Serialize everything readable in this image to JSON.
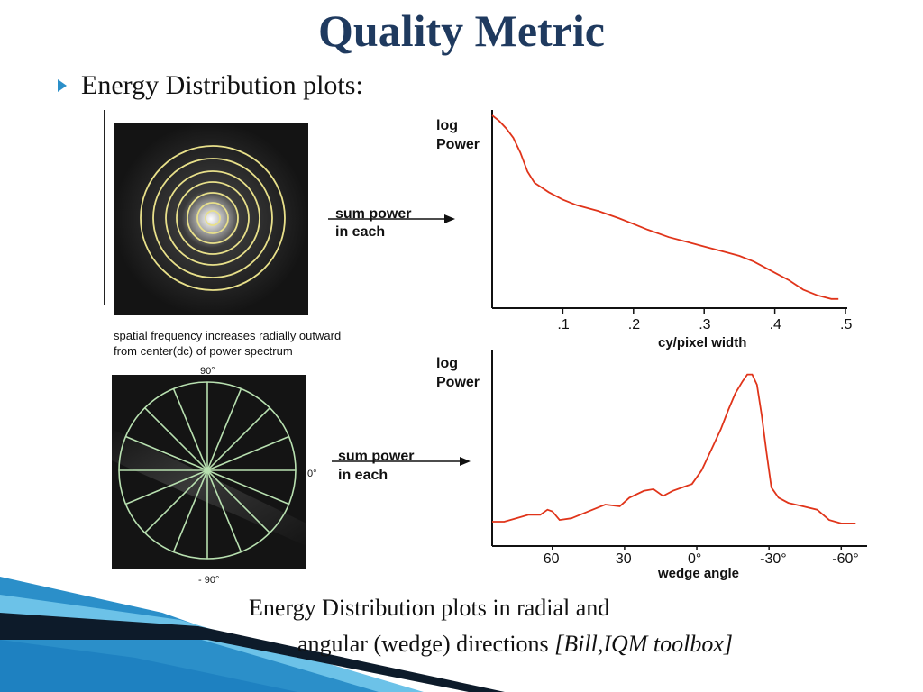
{
  "slide": {
    "title": "Quality Metric",
    "bullet": "Energy Distribution plots:",
    "caption_line1": "Energy Distribution plots in radial and",
    "caption_line2": "angular (wedge) directions",
    "caption_citation": "[Bill,IQM toolbox]"
  },
  "radial_panel": {
    "arrow_label_line1": "sum power",
    "arrow_label_line2": "in each",
    "image_caption_line1": "spatial frequency increases radially outward",
    "image_caption_line2": "from center(dc) of power spectrum"
  },
  "angular_panel": {
    "arrow_label_line1": "sum power",
    "arrow_label_line2": "in each",
    "angle_top": "90°",
    "angle_right": "0°",
    "angle_bottom": "- 90°"
  },
  "colors": {
    "title": "#1f3a5f",
    "bullet_marker": "#2b8fc9",
    "curve": "#e0341a",
    "rings": "#e8e08a",
    "spokes": "#b8e0b0"
  },
  "chart_data": [
    {
      "type": "line",
      "title": "",
      "ylabel_line1": "log",
      "ylabel_line2": "Power",
      "xlabel": "cy/pixel width",
      "xlim": [
        0,
        0.5
      ],
      "xticks": [
        ".1",
        ".2",
        ".3",
        ".4",
        ".5"
      ],
      "x": [
        0.0,
        0.01,
        0.02,
        0.03,
        0.04,
        0.05,
        0.06,
        0.08,
        0.1,
        0.12,
        0.15,
        0.18,
        0.2,
        0.22,
        0.25,
        0.28,
        0.3,
        0.33,
        0.35,
        0.37,
        0.4,
        0.42,
        0.44,
        0.46,
        0.48,
        0.49
      ],
      "y": [
        1.0,
        0.97,
        0.93,
        0.88,
        0.8,
        0.7,
        0.64,
        0.59,
        0.55,
        0.52,
        0.49,
        0.45,
        0.42,
        0.39,
        0.35,
        0.32,
        0.3,
        0.27,
        0.25,
        0.22,
        0.16,
        0.12,
        0.07,
        0.04,
        0.02,
        0.02
      ]
    },
    {
      "type": "line",
      "title": "",
      "ylabel_line1": "log",
      "ylabel_line2": "Power",
      "xlabel": "wedge angle",
      "xlim": [
        85,
        -70
      ],
      "xticks": [
        "60",
        "30",
        "0°",
        "-30°",
        "-60°"
      ],
      "xtick_values": [
        60,
        30,
        0,
        -30,
        -60
      ],
      "x": [
        85,
        80,
        75,
        70,
        65,
        62,
        60,
        57,
        52,
        45,
        38,
        32,
        28,
        22,
        18,
        14,
        10,
        6,
        2,
        -2,
        -6,
        -10,
        -13,
        -16,
        -19,
        -21,
        -23,
        -25,
        -27,
        -29,
        -31,
        -34,
        -38,
        -44,
        -50,
        -55,
        -60,
        -66
      ],
      "y": [
        0.1,
        0.1,
        0.12,
        0.14,
        0.14,
        0.17,
        0.16,
        0.11,
        0.12,
        0.16,
        0.2,
        0.19,
        0.24,
        0.28,
        0.29,
        0.25,
        0.28,
        0.3,
        0.32,
        0.4,
        0.52,
        0.64,
        0.75,
        0.85,
        0.92,
        0.96,
        0.96,
        0.9,
        0.72,
        0.5,
        0.3,
        0.24,
        0.21,
        0.19,
        0.17,
        0.11,
        0.09,
        0.09
      ]
    }
  ]
}
